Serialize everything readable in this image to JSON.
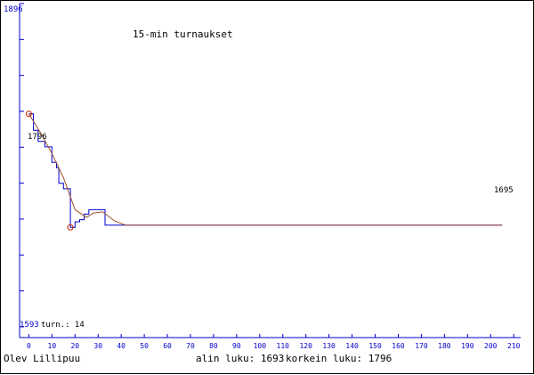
{
  "chart_data": {
    "type": "line",
    "title": "15-min turnaukset",
    "y_top_label": "1896",
    "y_bottom_label": "1593",
    "ylim": [
      1593,
      1896
    ],
    "xlim": [
      -4,
      213
    ],
    "x_ticks": [
      0,
      10,
      20,
      30,
      40,
      50,
      60,
      70,
      80,
      90,
      100,
      110,
      120,
      130,
      140,
      150,
      160,
      170,
      180,
      190,
      200,
      210
    ],
    "turn_label": "turn.: 14",
    "start_label": "1796",
    "end_label": "1695",
    "series": [
      {
        "color": "#0000cc",
        "x": [
          0,
          2,
          2,
          4,
          4,
          7,
          7,
          10,
          10,
          12,
          12,
          13,
          13,
          15,
          15,
          18,
          18,
          20,
          20,
          22,
          22,
          24,
          24,
          26,
          26,
          29,
          29,
          33,
          33,
          42,
          205
        ],
        "y": [
          1796,
          1796,
          1781,
          1781,
          1771,
          1771,
          1766,
          1766,
          1752,
          1752,
          1747,
          1747,
          1733,
          1733,
          1728,
          1728,
          1693,
          1693,
          1698,
          1698,
          1700,
          1700,
          1705,
          1705,
          1709,
          1709,
          1709,
          1709,
          1695,
          1695,
          1695
        ]
      },
      {
        "color": "#a0522d",
        "x": [
          0,
          5,
          10,
          15,
          20,
          25,
          28,
          32,
          37,
          42,
          205
        ],
        "y": [
          1796,
          1779,
          1760,
          1738,
          1709,
          1702,
          1706,
          1707,
          1699,
          1695,
          1695
        ]
      }
    ],
    "markers": [
      {
        "x": 0,
        "y": 1796
      },
      {
        "x": 18,
        "y": 1693
      }
    ]
  },
  "footer": {
    "player": "Olev Lillipuu",
    "min_label": "alin luku: 1693",
    "max_label": "korkein luku: 1796"
  }
}
